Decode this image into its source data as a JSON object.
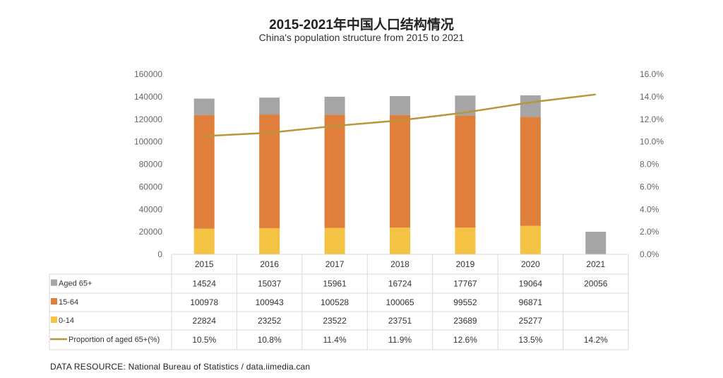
{
  "title": "2015-2021年中国人口结构情况",
  "subtitle": "China's population structure from 2015 to 2021",
  "source": "DATA RESOURCE: National Bureau of Statistics / data.iimedia.can",
  "colors": {
    "aged": "#a5a5a5",
    "working": "#e07f3c",
    "young": "#f5c343",
    "proportion": "#b8963a",
    "grid": "#d9d9d9",
    "tick": "#666666"
  },
  "chart_data": {
    "type": "bar",
    "stacked": true,
    "categories": [
      "2015",
      "2016",
      "2017",
      "2018",
      "2019",
      "2020",
      "2021"
    ],
    "series": [
      {
        "name": "0-14",
        "values": [
          22824,
          23252,
          23522,
          23751,
          23689,
          25277,
          null
        ],
        "color_key": "young"
      },
      {
        "name": "15-64",
        "values": [
          100978,
          100943,
          100528,
          100065,
          99552,
          96871,
          null
        ],
        "color_key": "working"
      },
      {
        "name": "Aged 65+",
        "values": [
          14524,
          15037,
          15961,
          16724,
          17767,
          19064,
          20056
        ],
        "color_key": "aged"
      }
    ],
    "line_series": {
      "name": "Proportion of aged 65+(%)",
      "values": [
        10.5,
        10.8,
        11.4,
        11.9,
        12.6,
        13.5,
        14.2
      ],
      "labels": [
        "10.5%",
        "10.8%",
        "11.4%",
        "11.9%",
        "12.6%",
        "13.5%",
        "14.2%"
      ]
    },
    "ylim": [
      0,
      160000
    ],
    "y_ticks": [
      "0",
      "20000",
      "40000",
      "60000",
      "80000",
      "100000",
      "120000",
      "140000",
      "160000"
    ],
    "y2lim": [
      0,
      16
    ],
    "y2_ticks": [
      "0.0%",
      "2.0%",
      "4.0%",
      "6.0%",
      "8.0%",
      "10.0%",
      "12.0%",
      "14.0%",
      "16.0%"
    ],
    "legend_placement": "data table below chart",
    "table": {
      "rows": [
        {
          "label": "Aged 65+",
          "marker": "square",
          "color_key": "aged",
          "cells": [
            "14524",
            "15037",
            "15961",
            "16724",
            "17767",
            "19064",
            "20056"
          ]
        },
        {
          "label": "15-64",
          "marker": "square",
          "color_key": "working",
          "cells": [
            "100978",
            "100943",
            "100528",
            "100065",
            "99552",
            "96871",
            ""
          ]
        },
        {
          "label": "0-14",
          "marker": "square",
          "color_key": "young",
          "cells": [
            "22824",
            "23252",
            "23522",
            "23751",
            "23689",
            "25277",
            ""
          ]
        },
        {
          "label": "Proportion of aged 65+(%)",
          "marker": "line",
          "color_key": "proportion",
          "cells": [
            "10.5%",
            "10.8%",
            "11.4%",
            "11.9%",
            "12.6%",
            "13.5%",
            "14.2%"
          ]
        }
      ]
    }
  }
}
